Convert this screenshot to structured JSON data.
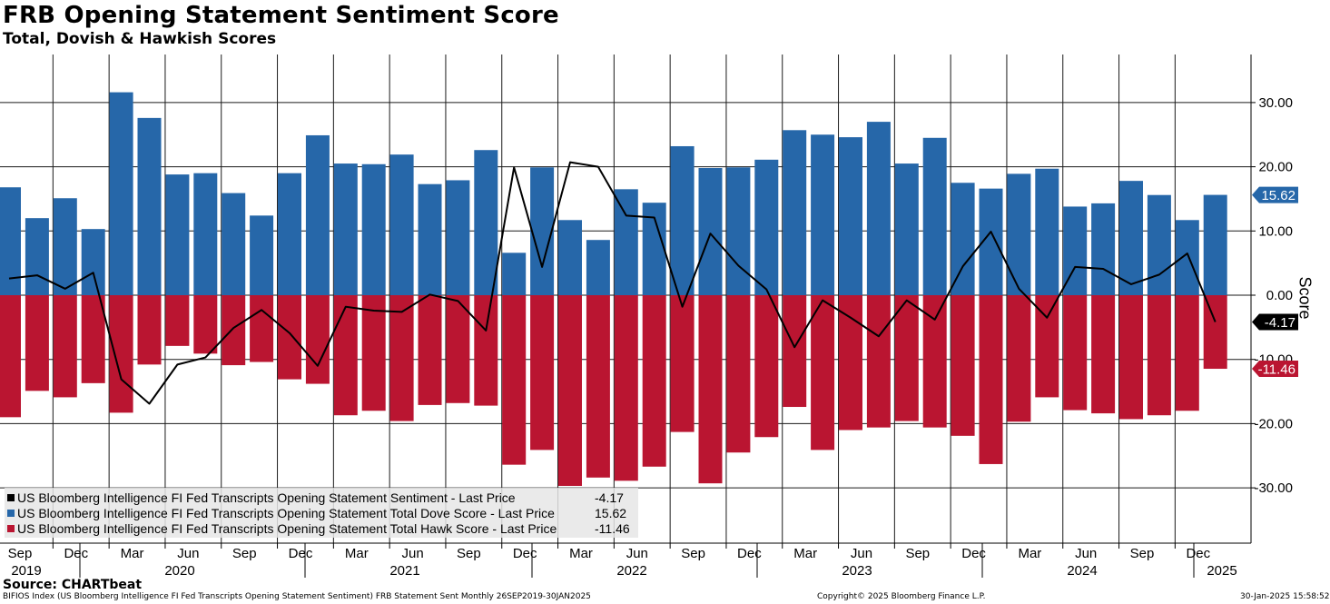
{
  "header": {
    "title": "FRB Opening Statement Sentiment Score",
    "subtitle": "Total, Dovish & Hawkish Scores"
  },
  "colors": {
    "dove": "#2667a9",
    "hawk": "#ba1531",
    "sentiment": "#000000",
    "grid": "#1a1a1a"
  },
  "legend": [
    {
      "label": "US Bloomberg Intelligence FI Fed Transcripts Opening Statement Sentiment - Last Price",
      "value": "-4.17",
      "color": "#000000"
    },
    {
      "label": "US Bloomberg Intelligence FI Fed Transcripts Opening Statement Total Dove Score - Last Price",
      "value": "15.62",
      "color": "#2667a9"
    },
    {
      "label": "US Bloomberg Intelligence FI Fed Transcripts Opening Statement Total Hawk Score - Last Price",
      "value": "-11.46",
      "color": "#ba1531"
    }
  ],
  "footer": {
    "source": "Source: CHARTbeat",
    "index_line": "BIFIOS Index (US Bloomberg Intelligence FI Fed Transcripts Opening Statement Sentiment) FRB Statement Sent  Monthly 26SEP2019-30JAN2025",
    "copyright": "Copyright© 2025 Bloomberg Finance L.P.",
    "timestamp": "30-Jan-2025 15:58:52"
  },
  "chart_data": {
    "type": "bar",
    "ylabel": "Score",
    "ylim": [
      -38,
      38
    ],
    "yticks": [
      30,
      20,
      10,
      0,
      -10,
      -20,
      -30
    ],
    "ytick_labels": [
      "30.00",
      "20.00",
      "10.00",
      "0.00",
      "-10.00",
      "-20.00",
      "-30.00"
    ],
    "x_month_labels": [
      "Sep",
      "Dec",
      "Mar",
      "Jun",
      "Sep",
      "Dec",
      "Mar",
      "Jun",
      "Sep",
      "Dec",
      "Mar",
      "Jun",
      "Sep",
      "Dec",
      "Mar",
      "Jun",
      "Sep",
      "Dec",
      "Mar",
      "Jun",
      "Sep",
      "Dec"
    ],
    "x_year_labels": [
      "2019",
      "2020",
      "2021",
      "2022",
      "2023",
      "2024",
      "2025"
    ],
    "last_value_labels": {
      "dove": "15.62",
      "sentiment": "-4.17",
      "hawk": "-11.46"
    },
    "series": [
      {
        "name": "US Bloomberg Intelligence FI Fed Transcripts Opening Statement Total Dove Score - Last Price",
        "kind": "bar",
        "values": [
          16.8,
          12.0,
          15.1,
          10.3,
          31.6,
          27.6,
          18.8,
          19.0,
          15.9,
          12.4,
          19.0,
          24.9,
          20.5,
          20.4,
          21.9,
          17.3,
          17.9,
          22.6,
          6.6,
          19.9,
          11.7,
          8.6,
          16.5,
          14.4,
          23.2,
          19.8,
          19.9,
          21.1,
          25.7,
          25.0,
          24.6,
          27.0,
          20.5,
          24.5,
          17.5,
          16.6,
          18.9,
          19.7,
          13.8,
          14.3,
          17.8,
          15.6,
          11.7,
          15.62
        ]
      },
      {
        "name": "US Bloomberg Intelligence FI Fed Transcripts Opening Statement Total Hawk Score - Last Price",
        "kind": "bar",
        "values": [
          -19.0,
          -14.9,
          -15.9,
          -13.7,
          -18.3,
          -10.8,
          -7.9,
          -9.1,
          -10.9,
          -10.4,
          -13.1,
          -13.8,
          -18.7,
          -18.0,
          -19.6,
          -17.1,
          -16.8,
          -17.2,
          -26.4,
          -24.1,
          -29.7,
          -28.4,
          -28.9,
          -26.7,
          -21.3,
          -29.3,
          -24.5,
          -22.1,
          -17.4,
          -24.1,
          -21.0,
          -20.6,
          -19.6,
          -20.6,
          -21.9,
          -26.3,
          -19.7,
          -15.9,
          -17.9,
          -18.4,
          -19.3,
          -18.7,
          -18.0,
          -11.46
        ]
      },
      {
        "name": "US Bloomberg Intelligence FI Fed Transcripts Opening Statement Sentiment - Last Price",
        "kind": "line",
        "values": [
          2.6,
          3.1,
          1.0,
          3.5,
          -13.1,
          -16.9,
          -10.8,
          -9.7,
          -5.1,
          -2.3,
          -5.9,
          -11.0,
          -1.8,
          -2.4,
          -2.6,
          0.1,
          -0.9,
          -5.5,
          19.9,
          4.4,
          20.7,
          20.0,
          12.4,
          12.1,
          -1.8,
          9.6,
          4.6,
          0.9,
          -8.1,
          -0.8,
          -3.5,
          -6.4,
          -0.8,
          -3.8,
          4.5,
          9.9,
          1.0,
          -3.5,
          4.4,
          4.1,
          1.7,
          3.2,
          6.5,
          -4.17
        ]
      }
    ]
  }
}
